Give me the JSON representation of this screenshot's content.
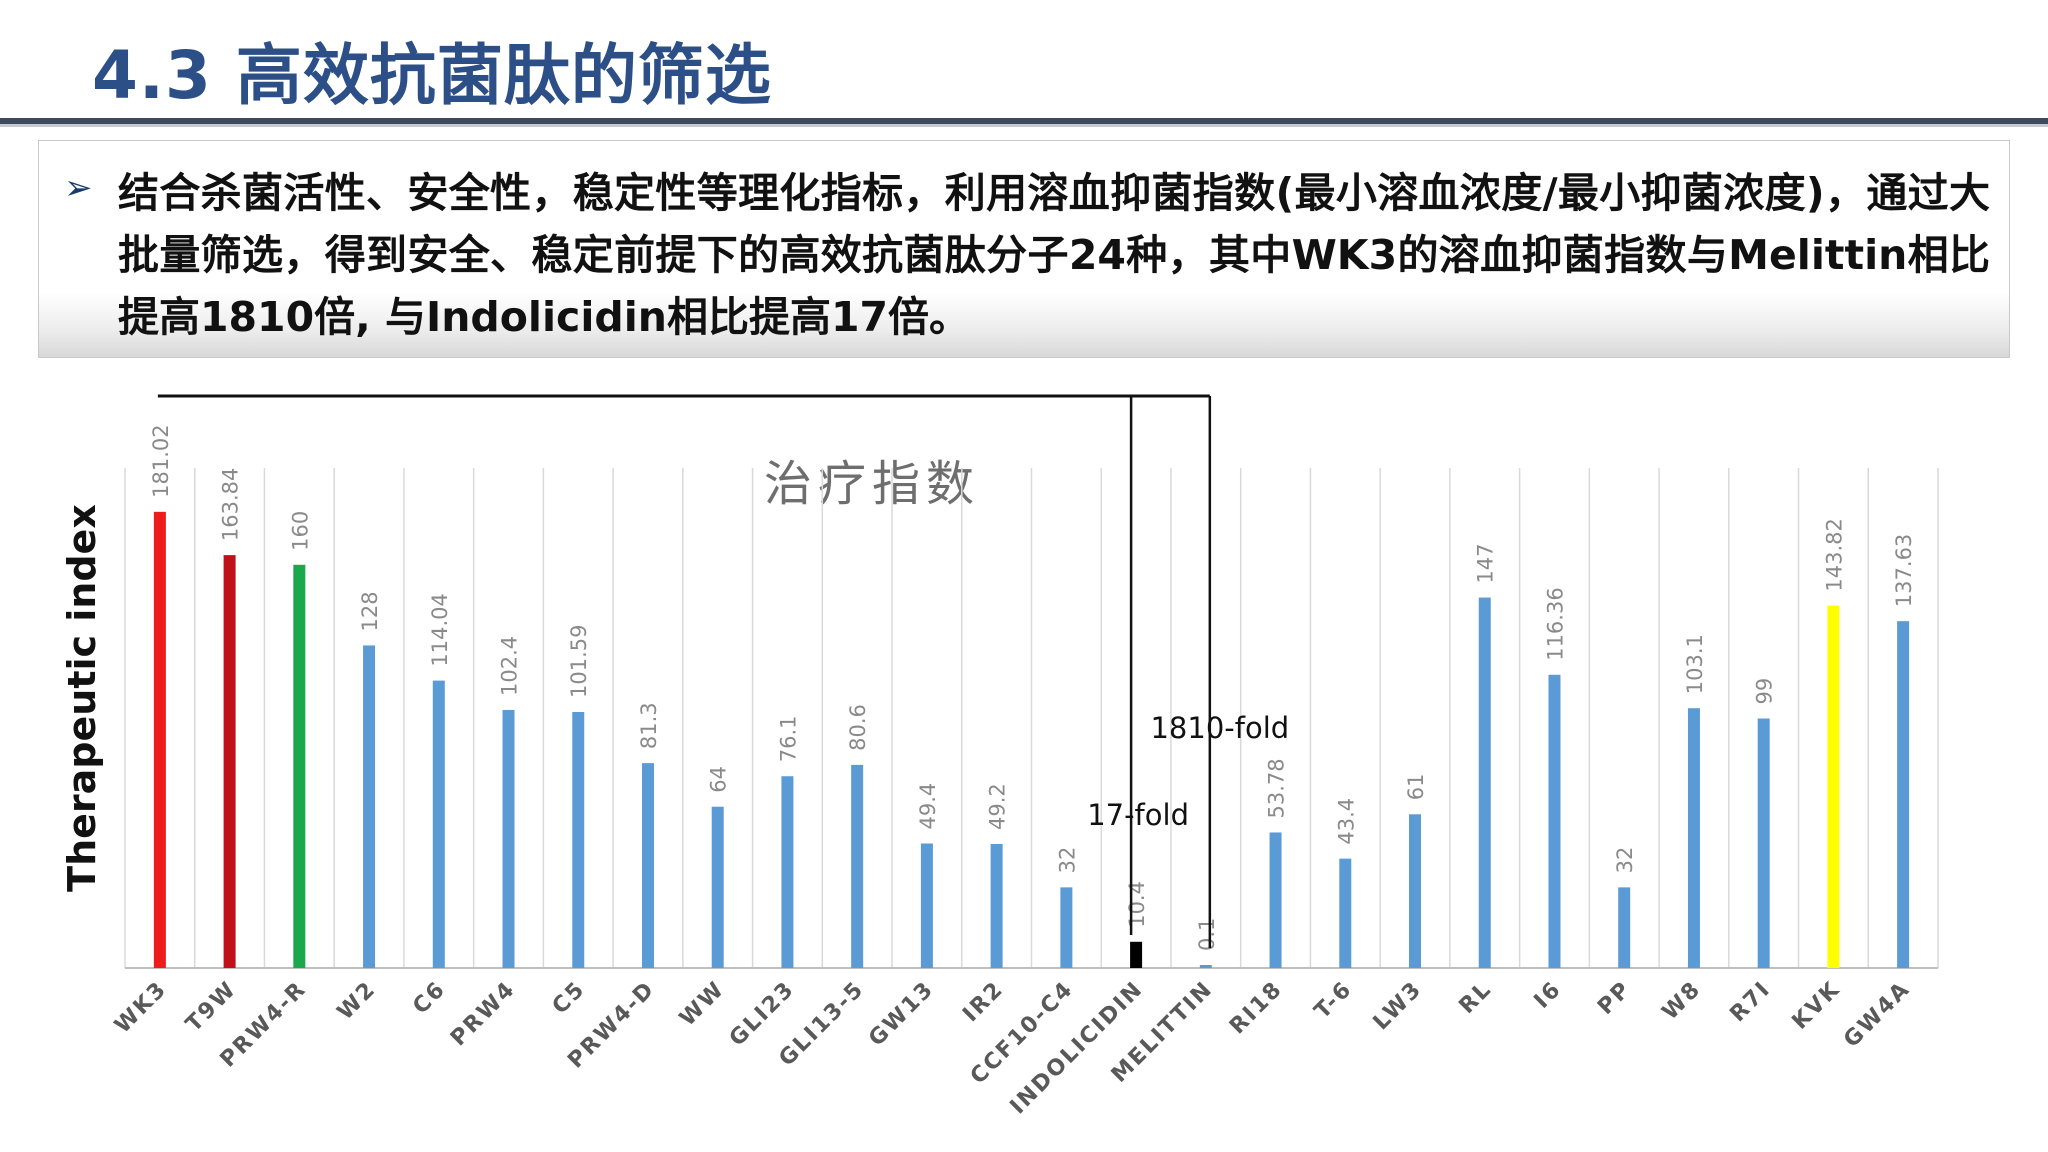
{
  "page": {
    "title": "4.3 高效抗菌肽的筛选",
    "bullet": "➢",
    "summary": "结合杀菌活性、安全性，稳定性等理化指标，利用溶血抑菌指数(最小溶血浓度/最小抑菌浓度)，通过大批量筛选，得到安全、稳定前提下的高效抗菌肽分子24种，其中WK3的溶血抑菌指数与Melittin相比提高1810倍, 与Indolicidin相比提高17倍。"
  },
  "chart_data": {
    "type": "bar",
    "title": "治疗指数",
    "ylabel": "Therapeutic index",
    "xlabel": "",
    "ylim": [
      0,
      200
    ],
    "grid": "vertical",
    "categories": [
      "WK3",
      "T9W",
      "PRW4-R",
      "W2",
      "C6",
      "PRW4",
      "C5",
      "PRW4-D",
      "WW",
      "GLI23",
      "GLI13-5",
      "GW13",
      "IR2",
      "CCF10-C4",
      "INDOLICIDIN",
      "MELITTIN",
      "RI18",
      "T-6",
      "LW3",
      "RL",
      "I6",
      "PP",
      "W8",
      "R7I",
      "KVK",
      "GW4A"
    ],
    "values": [
      181.02,
      163.84,
      160,
      128,
      114.04,
      102.4,
      101.59,
      81.3,
      64,
      76.1,
      80.6,
      49.4,
      49.2,
      32,
      10.4,
      0.1,
      53.78,
      43.4,
      61,
      147,
      116.36,
      32,
      103.1,
      99,
      143.82,
      137.63
    ],
    "value_labels": [
      "181.02",
      "163.84",
      "160",
      "128",
      "114.04",
      "102.4",
      "101.59",
      "81.3",
      "64",
      "76.1",
      "80.6",
      "49.4",
      "49.2",
      "32",
      "10.4",
      "0.1",
      "53.78",
      "43.4",
      "61",
      "147",
      "116.36",
      "32",
      "103.1",
      "99",
      "143.82",
      "137.63"
    ],
    "colors": [
      "#ee1c1c",
      "#c0111a",
      "#1aa84d",
      "#5b9bd5",
      "#5b9bd5",
      "#5b9bd5",
      "#5b9bd5",
      "#5b9bd5",
      "#5b9bd5",
      "#5b9bd5",
      "#5b9bd5",
      "#5b9bd5",
      "#5b9bd5",
      "#5b9bd5",
      "#000000",
      "#5b9bd5",
      "#5b9bd5",
      "#5b9bd5",
      "#5b9bd5",
      "#5b9bd5",
      "#5b9bd5",
      "#5b9bd5",
      "#5b9bd5",
      "#5b9bd5",
      "#ffff00",
      "#5b9bd5"
    ],
    "annotations": [
      {
        "text": "17-fold",
        "from": "WK3",
        "to": "INDOLICIDIN"
      },
      {
        "text": "1810-fold",
        "from": "WK3",
        "to": "MELITTIN"
      }
    ]
  }
}
